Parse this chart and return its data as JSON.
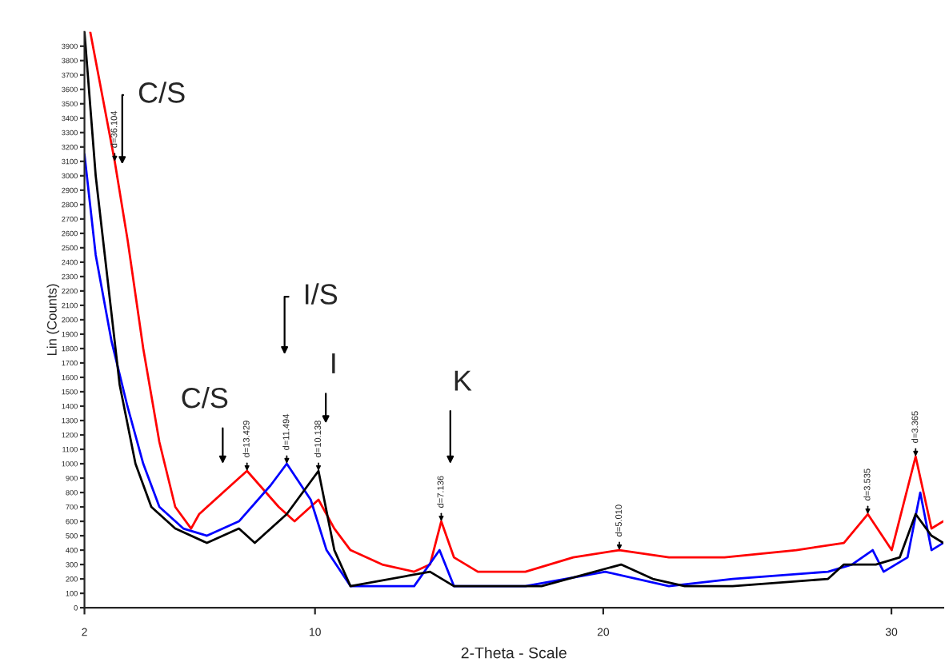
{
  "chart_data": {
    "type": "line",
    "xlabel": "2-Theta - Scale",
    "ylabel": "Lin (Counts)",
    "xlim": [
      2,
      31.8
    ],
    "xticks": [
      2,
      10,
      20,
      30
    ],
    "ylim": [
      0,
      4000
    ],
    "yticks": [
      0,
      100,
      200,
      300,
      400,
      500,
      600,
      700,
      800,
      900,
      1000,
      1100,
      1200,
      1300,
      1400,
      1500,
      1600,
      1700,
      1800,
      1900,
      2000,
      2100,
      2200,
      2300,
      2400,
      2500,
      2600,
      2700,
      2800,
      2900,
      3000,
      3100,
      3200,
      3300,
      3400,
      3500,
      3600,
      3700,
      3800,
      3900
    ],
    "grid": false,
    "legend": false,
    "line_style": "solid",
    "marker": "none",
    "series": [
      {
        "color": "#ff0000",
        "x": [
          2.2,
          3.05,
          3.5,
          4.04,
          4.6,
          5.15,
          5.7,
          5.98,
          7.36,
          7.64,
          8.74,
          9.29,
          10.12,
          10.67,
          11.23,
          12.33,
          13.44,
          13.99,
          14.38,
          14.82,
          15.65,
          17.3,
          18.96,
          20.56,
          22.28,
          24.21,
          26.7,
          28.35,
          29.18,
          30.01,
          30.84,
          31.39,
          31.8
        ],
        "values": [
          4000,
          3100,
          2550,
          1800,
          1150,
          700,
          550,
          650,
          900,
          950,
          700,
          600,
          750,
          550,
          400,
          300,
          250,
          300,
          600,
          350,
          250,
          250,
          350,
          400,
          350,
          350,
          400,
          450,
          650,
          400,
          1050,
          550,
          600
        ]
      },
      {
        "color": "#0000ff",
        "x": [
          2.0,
          2.39,
          2.94,
          3.49,
          4.04,
          4.6,
          5.43,
          6.25,
          7.36,
          8.46,
          9.02,
          9.85,
          10.4,
          11.23,
          13.44,
          14.32,
          14.82,
          17.3,
          20.07,
          22.28,
          24.49,
          27.8,
          28.63,
          29.35,
          29.73,
          30.56,
          31.0,
          31.39,
          31.8
        ],
        "values": [
          3150,
          2450,
          1850,
          1400,
          1000,
          700,
          550,
          500,
          600,
          850,
          1000,
          750,
          400,
          150,
          150,
          400,
          150,
          150,
          250,
          150,
          200,
          250,
          300,
          400,
          250,
          350,
          800,
          400,
          450
        ]
      },
      {
        "color": "#000000",
        "x": [
          2.0,
          2.39,
          3.22,
          3.77,
          4.32,
          5.15,
          6.25,
          7.36,
          7.91,
          9.02,
          10.12,
          10.67,
          11.23,
          13.99,
          14.82,
          17.86,
          20.62,
          21.72,
          22.83,
          24.49,
          27.8,
          28.35,
          29.46,
          30.29,
          30.84,
          31.39,
          31.8
        ],
        "values": [
          4000,
          3000,
          1550,
          1000,
          700,
          550,
          450,
          550,
          450,
          650,
          950,
          400,
          150,
          250,
          150,
          150,
          300,
          200,
          150,
          150,
          200,
          300,
          300,
          350,
          650,
          500,
          450
        ]
      }
    ],
    "annotations": [
      "C/S",
      {
        "text": "d=36.104",
        "x": 3.05,
        "y": 3100
      },
      "C/S",
      {
        "text": "d=13.429",
        "x": 7.64,
        "y": 950
      },
      "I/S",
      {
        "text": "d=11.494",
        "x": 9.02,
        "y": 1000
      },
      "I",
      {
        "text": "d=10.138",
        "x": 10.12,
        "y": 950
      },
      "K",
      {
        "text": "d=7.136",
        "x": 14.38,
        "y": 600
      },
      {
        "text": "d=5.010",
        "x": 20.56,
        "y": 400
      },
      {
        "text": "d=3.535",
        "x": 29.18,
        "y": 650
      },
      {
        "text": "d=3.365",
        "x": 30.84,
        "y": 1050
      }
    ]
  }
}
